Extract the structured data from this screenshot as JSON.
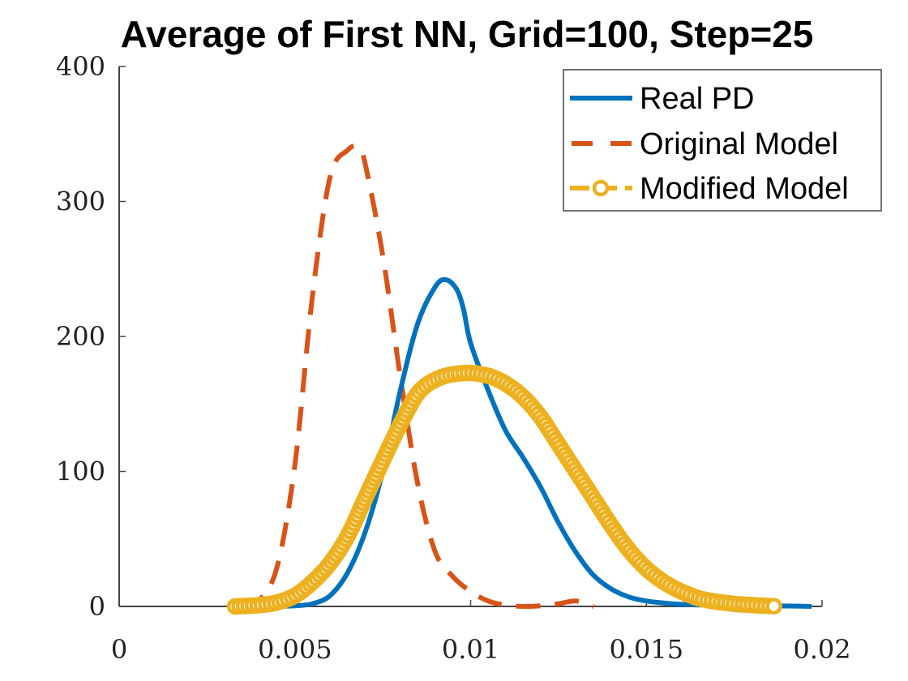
{
  "chart_data": {
    "type": "line",
    "title": "Average of First NN, Grid=100, Step=25",
    "xlabel": "",
    "ylabel": "",
    "xlim": [
      0,
      0.02
    ],
    "ylim": [
      0,
      400
    ],
    "xticks": [
      "0",
      "0.005",
      "0.01",
      "0.015",
      "0.02"
    ],
    "yticks": [
      "0",
      "100",
      "200",
      "300",
      "400"
    ],
    "grid": false,
    "legend_position": "top-right",
    "series": [
      {
        "name": "Real PD",
        "color": "#0072BD",
        "style": "solid",
        "x": [
          0.0043,
          0.005,
          0.0055,
          0.006,
          0.0065,
          0.007,
          0.0075,
          0.008,
          0.0085,
          0.009,
          0.0093,
          0.0096,
          0.0098,
          0.01,
          0.0105,
          0.011,
          0.0115,
          0.012,
          0.0125,
          0.013,
          0.0135,
          0.014,
          0.0145,
          0.015,
          0.0155,
          0.016,
          0.017,
          0.018,
          0.019,
          0.0197
        ],
        "values": [
          0,
          0.5,
          2,
          8,
          25,
          55,
          100,
          160,
          210,
          237,
          242,
          235,
          220,
          195,
          160,
          130,
          110,
          88,
          62,
          40,
          23,
          13,
          7,
          4,
          2.5,
          1.5,
          0.8,
          0.5,
          0.3,
          0
        ]
      },
      {
        "name": "Original Model",
        "color": "#D95319",
        "style": "dashed",
        "x": [
          0.0035,
          0.004,
          0.0045,
          0.005,
          0.0055,
          0.006,
          0.0065,
          0.0068,
          0.007,
          0.0075,
          0.008,
          0.0085,
          0.009,
          0.0095,
          0.01,
          0.0105,
          0.011,
          0.0115,
          0.012,
          0.0125,
          0.013,
          0.0135
        ],
        "values": [
          0,
          5,
          30,
          105,
          230,
          318,
          338,
          340,
          328,
          260,
          170,
          90,
          40,
          22,
          11,
          4,
          1,
          0,
          0.5,
          2,
          4,
          0
        ]
      },
      {
        "name": "Modified Model",
        "color": "#EDB120",
        "style": "dashed-circles",
        "x": [
          0.0033,
          0.004,
          0.0045,
          0.005,
          0.0055,
          0.006,
          0.0065,
          0.007,
          0.0075,
          0.008,
          0.0085,
          0.009,
          0.0095,
          0.01,
          0.0103,
          0.0106,
          0.011,
          0.0115,
          0.012,
          0.0125,
          0.013,
          0.0135,
          0.014,
          0.0145,
          0.015,
          0.0155,
          0.016,
          0.0165,
          0.017,
          0.0175,
          0.018,
          0.0187
        ],
        "values": [
          0,
          1,
          3,
          8,
          18,
          32,
          52,
          80,
          108,
          135,
          158,
          168,
          172,
          173,
          172,
          170,
          165,
          155,
          140,
          120,
          100,
          80,
          60,
          42,
          28,
          18,
          11,
          6,
          3.5,
          2,
          1,
          0
        ]
      }
    ]
  }
}
